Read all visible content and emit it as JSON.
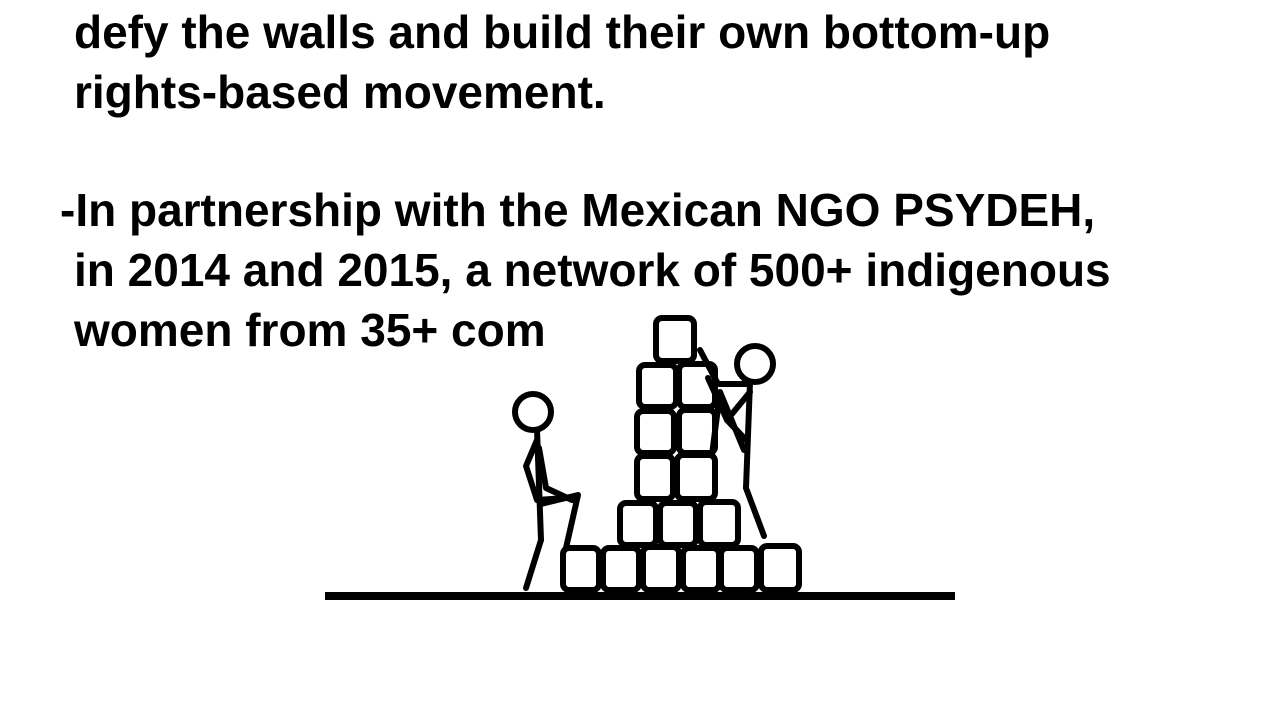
{
  "slide": {
    "paragraph1": {
      "lines": [
        "defy the walls and build their own bottom-up",
        "rights-based movement."
      ]
    },
    "paragraph2": {
      "lines": [
        "-In partnership with the Mexican NGO PSYDEH,",
        "in 2014 and 2015, a network of 500+ indigenous",
        "women from 35+ com"
      ]
    },
    "illustration": {
      "subject": "two stick figures building a stack of blocks",
      "stroke_color": "#000000",
      "background_color": "#ffffff"
    }
  }
}
